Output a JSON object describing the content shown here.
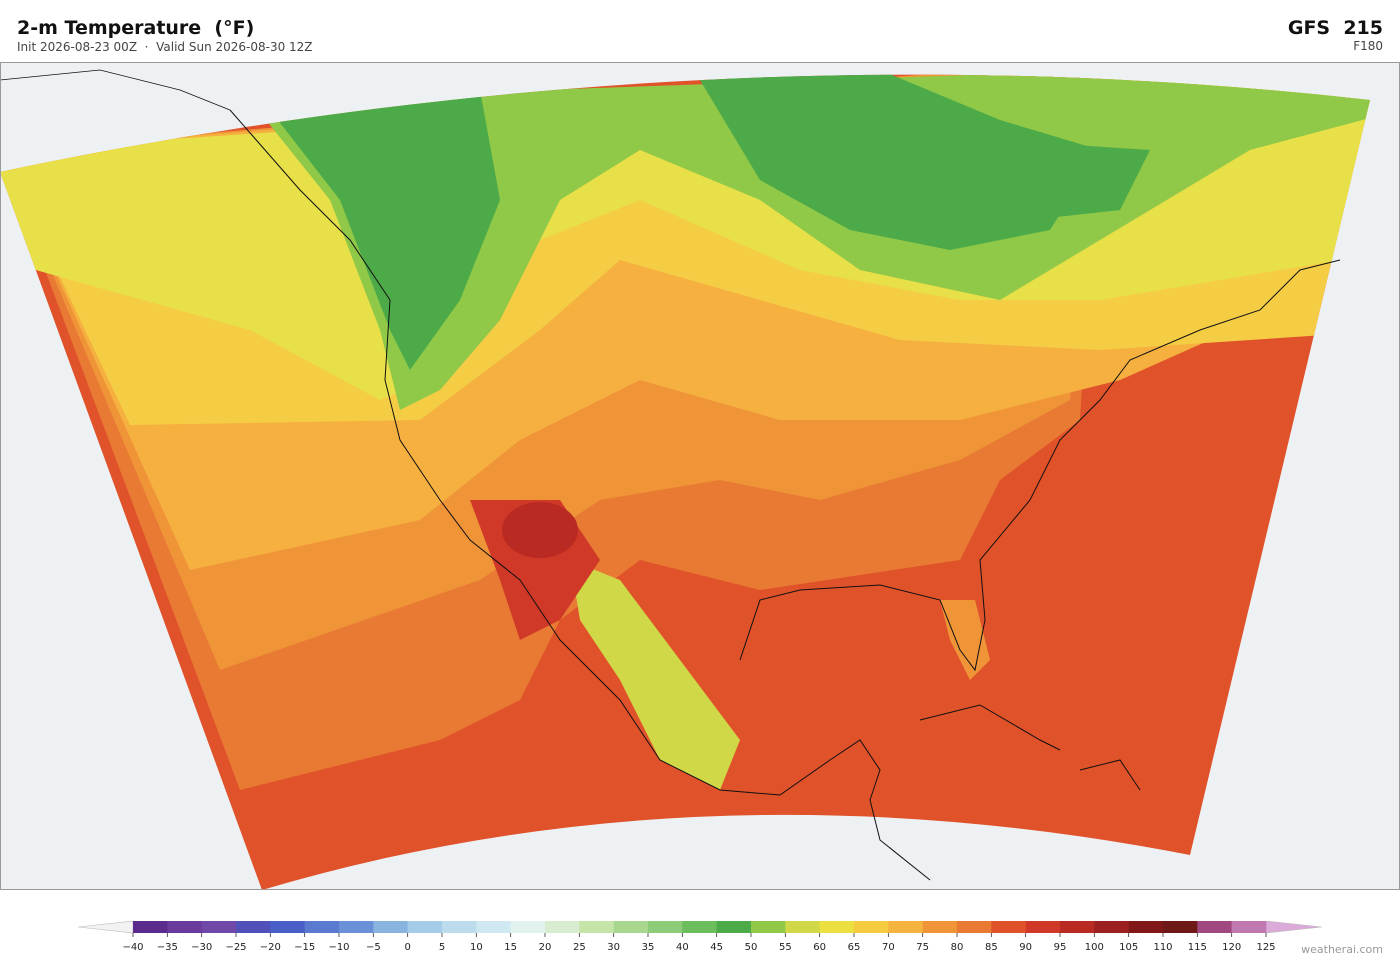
{
  "header": {
    "title": "2-m Temperature  (°F)",
    "subtitle": "Init 2026-08-23 00Z  ·  Valid Sun 2026-08-30 12Z",
    "model": "GFS  215",
    "forecast_hour": "F180"
  },
  "colorbar": {
    "ticks": [
      {
        "value": -40,
        "label": "−40"
      },
      {
        "value": -35,
        "label": "−35"
      },
      {
        "value": -30,
        "label": "−30"
      },
      {
        "value": -25,
        "label": "−25"
      },
      {
        "value": -20,
        "label": "−20"
      },
      {
        "value": -15,
        "label": "−15"
      },
      {
        "value": -10,
        "label": "−10"
      },
      {
        "value": -5,
        "label": "−5"
      },
      0,
      5,
      10,
      15,
      20,
      25,
      30,
      35,
      40,
      45,
      50,
      55,
      60,
      65,
      70,
      75,
      80,
      85,
      90,
      95,
      100,
      105,
      110,
      115,
      120,
      125
    ],
    "colors": [
      "#5a2a8c",
      "#6a3a9c",
      "#7048a8",
      "#5050b8",
      "#4a5ec8",
      "#5a7ad0",
      "#6a90d8",
      "#8ab4e0",
      "#a4cce8",
      "#bcdcee",
      "#d0e8f2",
      "#e2f2ee",
      "#d8ecd0",
      "#c4e4a8",
      "#a8d890",
      "#8ccc78",
      "#6cbe5c",
      "#4caa48",
      "#90c848",
      "#d0d848",
      "#ece040",
      "#f5cc40",
      "#f5b440",
      "#f09438",
      "#e87a34",
      "#e0522a",
      "#d03828",
      "#b82a22",
      "#9c2020",
      "#801818",
      "#6e1818",
      "#a04880",
      "#c078b0",
      "#d8a0d0"
    ],
    "under_color": "#f2f2f2",
    "over_color": "#dcaad8"
  },
  "watermark": "weatherai.com"
}
